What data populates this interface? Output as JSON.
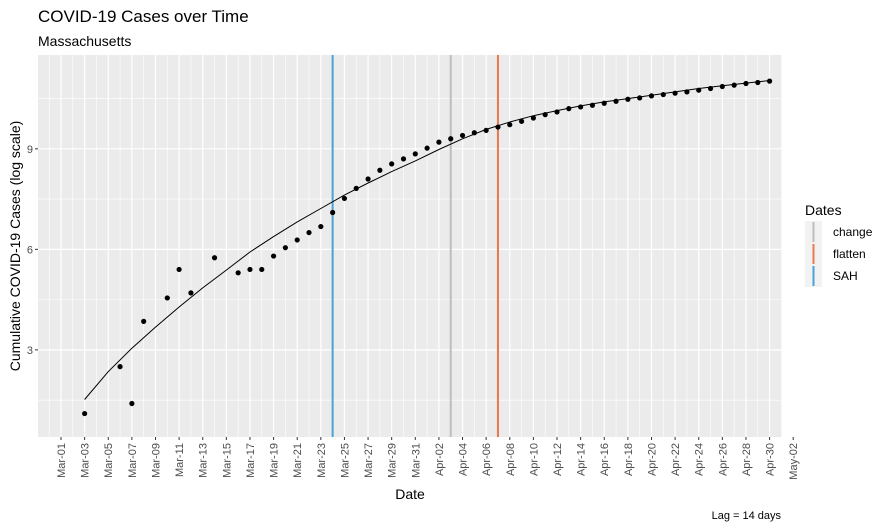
{
  "chart_data": {
    "type": "scatter",
    "title": "COVID-19 Cases over Time",
    "subtitle": "Massachusetts",
    "xlabel": "Date",
    "ylabel": "Cumulative COVID-19 Cases (log scale)",
    "caption": "Lag = 14 days",
    "x_start": "2020-02-29",
    "x_end": "2020-05-03",
    "xlim_index": [
      0,
      63
    ],
    "ylim": [
      0.4,
      11.8
    ],
    "y_ticks": [
      3,
      6,
      9
    ],
    "x_tick_labels": [
      "Mar-01",
      "Mar-03",
      "Mar-05",
      "Mar-07",
      "Mar-09",
      "Mar-11",
      "Mar-13",
      "Mar-15",
      "Mar-17",
      "Mar-19",
      "Mar-21",
      "Mar-23",
      "Mar-25",
      "Mar-27",
      "Mar-29",
      "Mar-31",
      "Apr-02",
      "Apr-04",
      "Apr-06",
      "Apr-08",
      "Apr-10",
      "Apr-12",
      "Apr-14",
      "Apr-16",
      "Apr-18",
      "Apr-20",
      "Apr-22",
      "Apr-24",
      "Apr-26",
      "Apr-28",
      "Apr-30",
      "May-02"
    ],
    "x_tick_index": [
      1,
      3,
      5,
      7,
      9,
      11,
      13,
      15,
      17,
      19,
      21,
      23,
      25,
      27,
      29,
      31,
      33,
      35,
      37,
      39,
      41,
      43,
      45,
      47,
      49,
      51,
      53,
      55,
      57,
      59,
      61,
      63
    ],
    "series": [
      {
        "kind": "points",
        "x_index": [
          3,
          6,
          7,
          8,
          10,
          11,
          12,
          14,
          16,
          17,
          18,
          19,
          20,
          21,
          22,
          23,
          24,
          25,
          26,
          27,
          28,
          29,
          30,
          31,
          32,
          33,
          34,
          35,
          36,
          37,
          38,
          39,
          40,
          41,
          42,
          43,
          44,
          45,
          46,
          47,
          48,
          49,
          50,
          51,
          52,
          53,
          54,
          55,
          56,
          57,
          58,
          59,
          60,
          61
        ],
        "y": [
          1.1,
          2.5,
          1.4,
          3.85,
          4.55,
          5.4,
          4.7,
          5.75,
          5.3,
          5.4,
          5.4,
          5.8,
          6.05,
          6.28,
          6.5,
          6.68,
          7.1,
          7.52,
          7.82,
          8.1,
          8.36,
          8.55,
          8.7,
          8.85,
          9.02,
          9.2,
          9.3,
          9.4,
          9.48,
          9.55,
          9.65,
          9.72,
          9.82,
          9.92,
          10.02,
          10.1,
          10.2,
          10.25,
          10.3,
          10.36,
          10.42,
          10.48,
          10.52,
          10.58,
          10.62,
          10.66,
          10.7,
          10.75,
          10.8,
          10.86,
          10.9,
          10.95,
          10.98,
          11.02
        ]
      },
      {
        "kind": "fit-line",
        "x_index": [
          3,
          5,
          7,
          9,
          11,
          13,
          15,
          17,
          19,
          21,
          23,
          25,
          27,
          29,
          31,
          33,
          35,
          37,
          39,
          41,
          43,
          45,
          47,
          49,
          51,
          53,
          55,
          57,
          59,
          61
        ],
        "y": [
          1.52,
          2.35,
          3.05,
          3.68,
          4.28,
          4.85,
          5.38,
          5.92,
          6.38,
          6.82,
          7.22,
          7.62,
          7.98,
          8.32,
          8.64,
          8.98,
          9.3,
          9.58,
          9.8,
          9.99,
          10.14,
          10.28,
          10.4,
          10.5,
          10.6,
          10.7,
          10.8,
          10.88,
          10.96,
          11.04
        ]
      }
    ],
    "vlines": [
      {
        "name": "change",
        "x_index": 34,
        "color": "#bdbdbd"
      },
      {
        "name": "flatten",
        "x_index": 38,
        "color": "#e8794a"
      },
      {
        "name": "SAH",
        "x_index": 24,
        "color": "#4aa3d3"
      }
    ],
    "legend": {
      "title": "Dates",
      "placement": "right",
      "entries": [
        "change",
        "flatten",
        "SAH"
      ]
    },
    "panel_background": "#ebebeb",
    "grid_color": "#ffffff",
    "grid": true
  }
}
